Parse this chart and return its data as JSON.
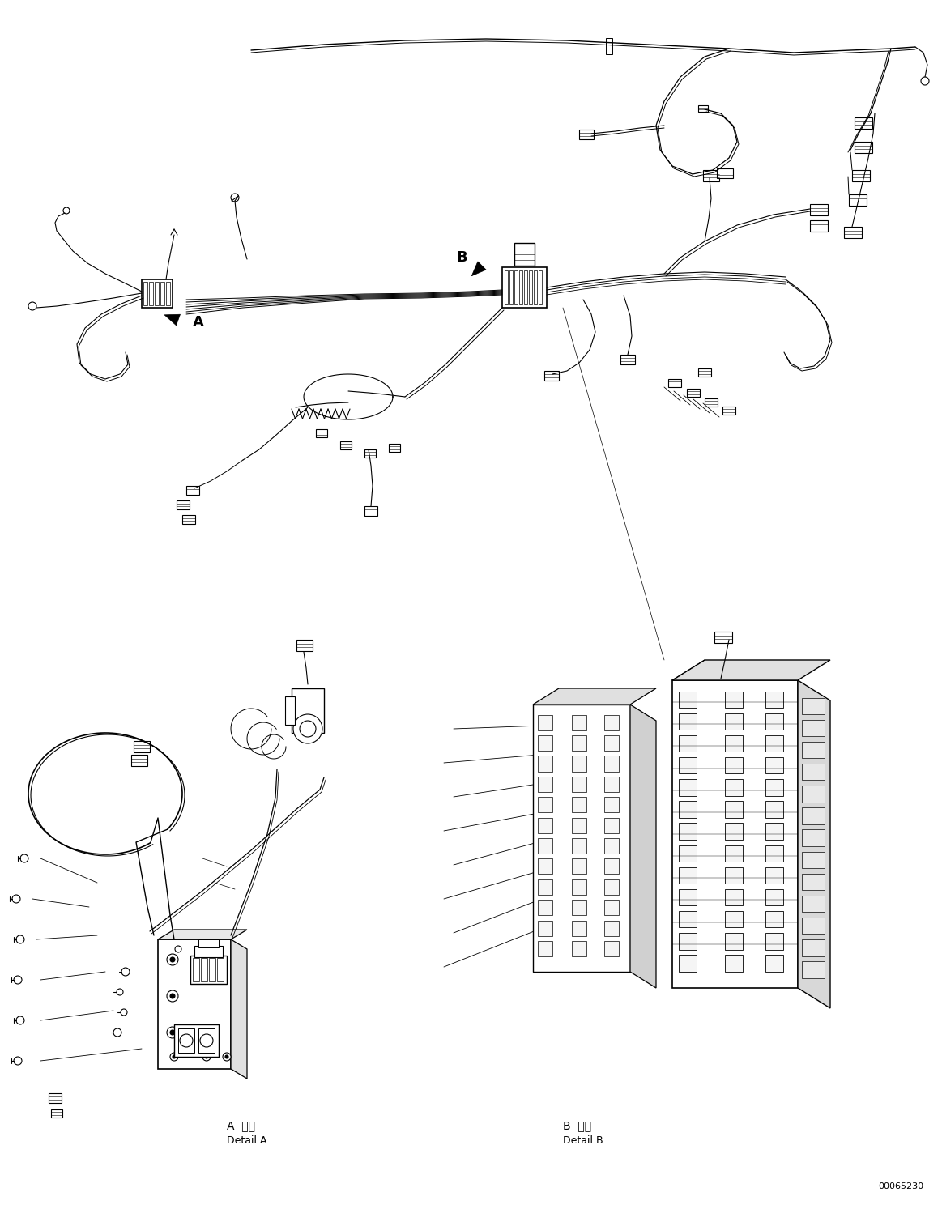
{
  "background_color": "#ffffff",
  "line_color": "#000000",
  "fig_width": 11.63,
  "fig_height": 14.88,
  "dpi": 100,
  "part_number": "00065230",
  "label_A_jp1": "A",
  "label_A_jp2": "詳細",
  "label_A_en": "Detail A",
  "label_B_jp1": "B",
  "label_B_jp2": "詳細",
  "label_B_en": "Detail B"
}
